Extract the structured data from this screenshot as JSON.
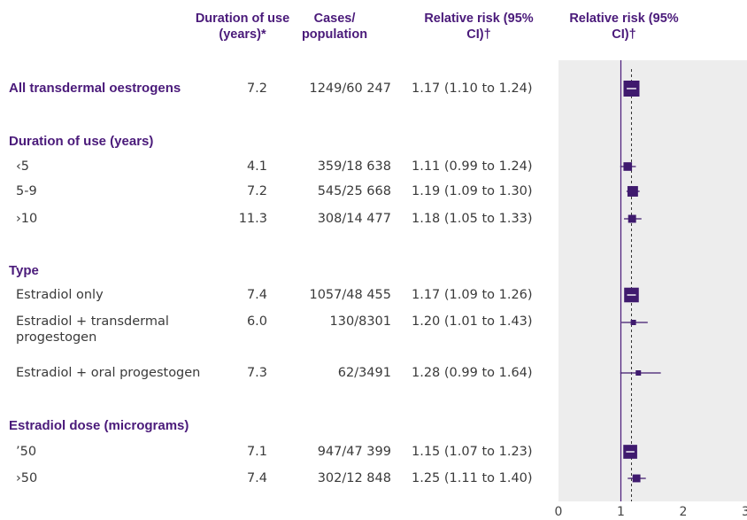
{
  "headers": {
    "duration": "Duration of use (years)*",
    "cases": "Cases/ population",
    "rr_text": "Relative risk (95% CI)†",
    "rr_plot": "Relative risk (95% CI)†"
  },
  "sections": {
    "duration": "Duration of use (years)",
    "type": "Type",
    "dose": "Estradiol dose (micrograms)"
  },
  "rows": [
    {
      "label": "All transdermal oestrogens",
      "duration": "7.2",
      "cases": "1249/60 247",
      "ci_text": "1.17 (1.10 to 1.24)"
    },
    {
      "label": "‹5",
      "duration": "4.1",
      "cases": "359/18 638",
      "ci_text": "1.11 (0.99 to 1.24)"
    },
    {
      "label": "5-9",
      "duration": "7.2",
      "cases": "545/25 668",
      "ci_text": "1.19 (1.09 to 1.30)"
    },
    {
      "label": "›10",
      "duration": "11.3",
      "cases": "308/14 477",
      "ci_text": "1.18 (1.05 to 1.33)"
    },
    {
      "label": "Estradiol only",
      "duration": "7.4",
      "cases": "1057/48 455",
      "ci_text": "1.17 (1.09 to 1.26)"
    },
    {
      "label": "Estradiol + transdermal progestogen",
      "duration": "6.0",
      "cases": "130/8301",
      "ci_text": "1.20 (1.01 to 1.43)"
    },
    {
      "label": "Estradiol + oral progestogen",
      "duration": "7.3",
      "cases": "62/3491",
      "ci_text": "1.28 (0.99 to 1.64)"
    },
    {
      "label": "’50",
      "duration": "7.1",
      "cases": "947/47 399",
      "ci_text": "1.15 (1.07 to 1.23)"
    },
    {
      "label": "›50",
      "duration": "7.4",
      "cases": "302/12 848",
      "ci_text": "1.25 (1.11 to 1.40)"
    }
  ],
  "chart_data": {
    "type": "forest",
    "x_ticks": [
      "0",
      "1",
      "2",
      "3"
    ],
    "xlim": [
      0,
      3
    ],
    "reference_line": 1,
    "overall_line": 1.17,
    "colors": {
      "marker": "#3f1a6e",
      "ref": "#4a1a7a",
      "panel": "#ededed"
    },
    "points": [
      {
        "label": "All transdermal oestrogens",
        "rr": 1.17,
        "lo": 1.1,
        "hi": 1.24,
        "weight": 1249
      },
      {
        "label": "‹5",
        "rr": 1.11,
        "lo": 0.99,
        "hi": 1.24,
        "weight": 359
      },
      {
        "label": "5-9",
        "rr": 1.19,
        "lo": 1.09,
        "hi": 1.3,
        "weight": 545
      },
      {
        "label": "›10",
        "rr": 1.18,
        "lo": 1.05,
        "hi": 1.33,
        "weight": 308
      },
      {
        "label": "Estradiol only",
        "rr": 1.17,
        "lo": 1.09,
        "hi": 1.26,
        "weight": 1057
      },
      {
        "label": "Estradiol + transdermal progestogen",
        "rr": 1.2,
        "lo": 1.01,
        "hi": 1.43,
        "weight": 130
      },
      {
        "label": "Estradiol + oral progestogen",
        "rr": 1.28,
        "lo": 0.99,
        "hi": 1.64,
        "weight": 62
      },
      {
        "label": "’50",
        "rr": 1.15,
        "lo": 1.07,
        "hi": 1.23,
        "weight": 947
      },
      {
        "label": "›50",
        "rr": 1.25,
        "lo": 1.11,
        "hi": 1.4,
        "weight": 302
      }
    ]
  }
}
